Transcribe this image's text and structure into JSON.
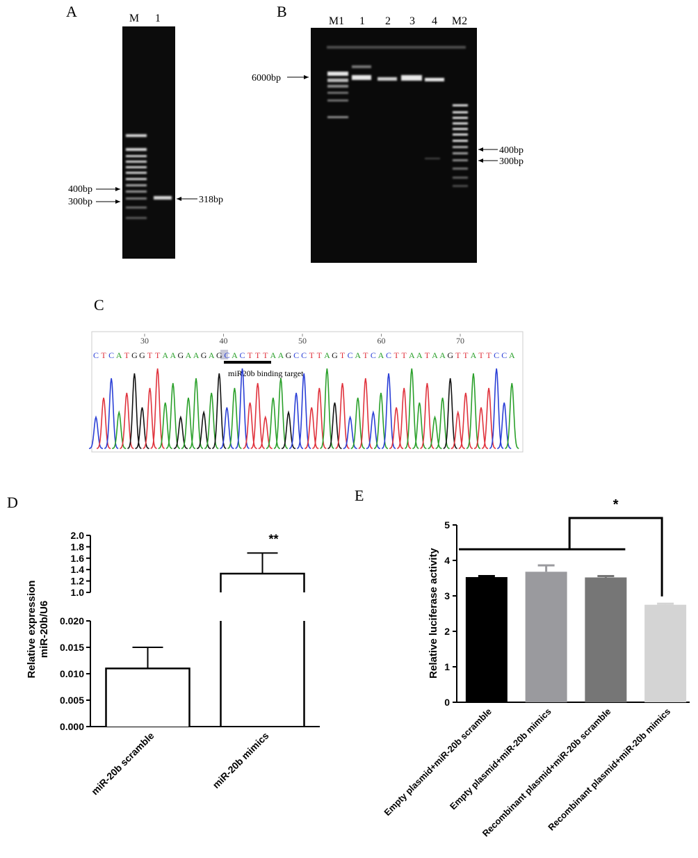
{
  "panels": {
    "A": {
      "label": "A",
      "lanes": [
        "M",
        "1"
      ],
      "markers": [
        "400bp",
        "300bp",
        "318bp"
      ]
    },
    "B": {
      "label": "B",
      "lanes": [
        "M1",
        "1",
        "2",
        "3",
        "4",
        "M2"
      ],
      "markers": [
        "6000bp",
        "400bp",
        "300bp"
      ]
    },
    "C": {
      "label": "C",
      "positions": [
        30,
        40,
        50,
        60,
        70
      ],
      "sequence": [
        "C",
        "T",
        "C",
        "A",
        "T",
        "G",
        "G",
        "T",
        "T",
        "A",
        "A",
        "G",
        "A",
        "A",
        "G",
        "A",
        "G",
        "C",
        "A",
        "C",
        "T",
        "T",
        "T",
        "A",
        "A",
        "G",
        "C",
        "C",
        "T",
        "T",
        "A",
        "G",
        "T",
        "C",
        "A",
        "T",
        "C",
        "A",
        "C",
        "T",
        "T",
        "A",
        "A",
        "T",
        "A",
        "A",
        "G",
        "T",
        "T",
        "A",
        "T",
        "T",
        "C",
        "C",
        "A"
      ],
      "base_colors": {
        "A": "#2aa02a",
        "C": "#2a3fd6",
        "G": "#111111",
        "T": "#e0323c"
      },
      "annotation": "miR20b binding target"
    }
  },
  "chart_data": [
    {
      "type": "bar",
      "panel_label": "D",
      "y_label": [
        "Relative expression",
        "miR-20b/U6"
      ],
      "categories": [
        "miR-20b scramble",
        "miR-20b mimics"
      ],
      "values": [
        0.011,
        1.33
      ],
      "errors": [
        0.004,
        0.36
      ],
      "color": "#ffffff",
      "ylim": [
        0,
        2
      ],
      "ybreak": [
        0.02,
        1
      ],
      "yticks": [
        {
          "value": 0,
          "label": "0.000"
        },
        0.005,
        {
          "value": 0.01,
          "label": "0.010"
        },
        0.015,
        {
          "value": 0.02,
          "label": "0.020"
        },
        {
          "value": 1,
          "label": "1.0"
        },
        1.2,
        1.4,
        1.6,
        1.8,
        {
          "value": 2,
          "label": "2.0"
        }
      ],
      "annotation": "**"
    },
    {
      "type": "bar",
      "panel_label": "E",
      "y_label": [
        "Relative luciferase activity"
      ],
      "categories": [
        "Empty plasmid+miR-20b scramble",
        "Empty plasmid+miR-20b mimics",
        "Recombinant plasmid+miR-20b scramble",
        "Recombinant plasmid+miR-20b mimics"
      ],
      "values": [
        3.53,
        3.68,
        3.52,
        2.75
      ],
      "errors": [
        0.03,
        0.18,
        0.04,
        0.03
      ],
      "colors": [
        "#000000",
        "#9a9a9e",
        "#767676",
        "#d4d4d4"
      ],
      "ylim": [
        0,
        5
      ],
      "yticks": [
        0,
        1,
        2,
        3,
        4,
        5
      ],
      "annotation": "*"
    }
  ]
}
